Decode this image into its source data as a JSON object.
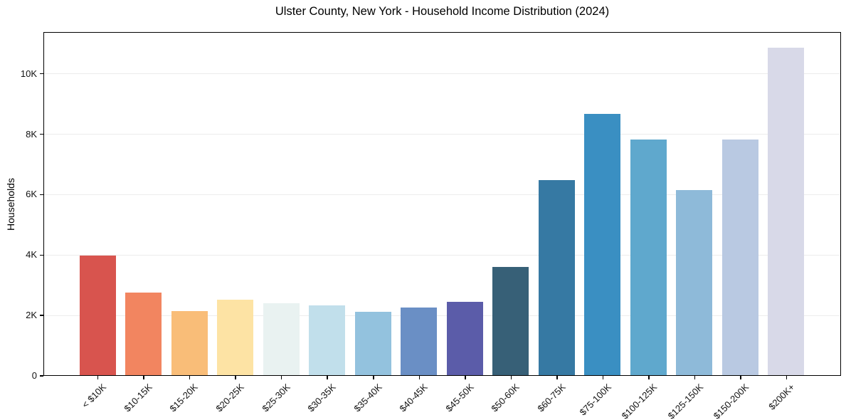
{
  "chart_data": {
    "type": "bar",
    "title": "Ulster County, New York - Household Income Distribution (2024)",
    "xlabel": "",
    "ylabel": "Households",
    "categories": [
      "< $10K",
      "$10-15K",
      "$15-20K",
      "$20-25K",
      "$25-30K",
      "$30-35K",
      "$35-40K",
      "$40-45K",
      "$45-50K",
      "$50-60K",
      "$60-75K",
      "$75-100K",
      "$100-125K",
      "$125-150K",
      "$150-200K",
      "$200K+"
    ],
    "values": [
      3950,
      2740,
      2130,
      2500,
      2370,
      2300,
      2090,
      2250,
      2420,
      3590,
      6450,
      8650,
      7800,
      6120,
      7800,
      10830
    ],
    "bar_colors": [
      "#d8544e",
      "#f28560",
      "#f9bd78",
      "#fde3a4",
      "#e9f2f1",
      "#c1dfeb",
      "#93c2de",
      "#6a8fc5",
      "#5b5ca9",
      "#376077",
      "#3679a3",
      "#3a8fc2",
      "#5fa8cd",
      "#8ebad9",
      "#b9c9e2",
      "#d8d9e8"
    ],
    "y_ticks": [
      {
        "label": "0",
        "value": 0
      },
      {
        "label": "2K",
        "value": 2000
      },
      {
        "label": "4K",
        "value": 4000
      },
      {
        "label": "6K",
        "value": 6000
      },
      {
        "label": "8K",
        "value": 8000
      },
      {
        "label": "10K",
        "value": 10000
      }
    ],
    "ylim": [
      0,
      11380
    ],
    "grid": "horizontal",
    "grid_color": "#ececec",
    "spine_color": "#000000",
    "background": "#ffffff",
    "legend": "none",
    "x_tick_rotation_deg": 45
  }
}
